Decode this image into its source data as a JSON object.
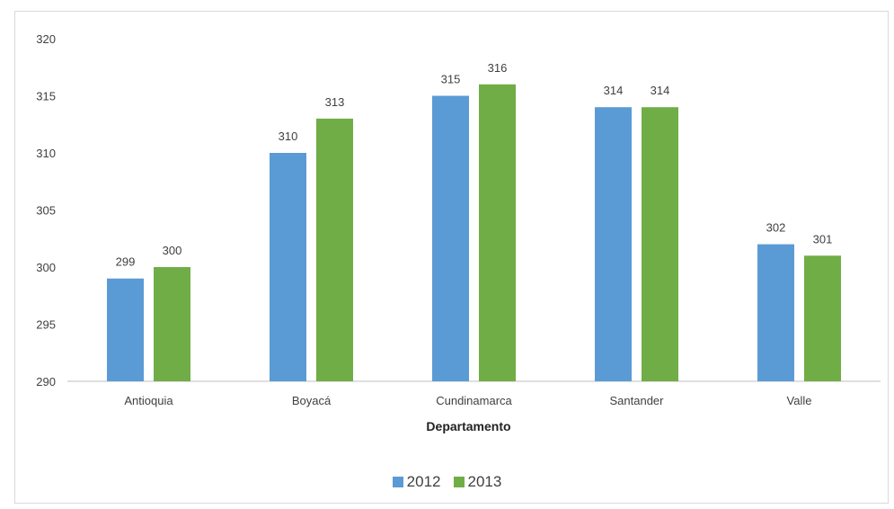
{
  "chart_data": {
    "type": "bar",
    "categories": [
      "Antioquia",
      "Boyacá",
      "Cundinamarca",
      "Santander",
      "Valle"
    ],
    "series": [
      {
        "name": "2012",
        "values": [
          299,
          310,
          315,
          314,
          302
        ],
        "color": "#5b9bd5"
      },
      {
        "name": "2013",
        "values": [
          300,
          313,
          316,
          314,
          301
        ],
        "color": "#70ad47"
      }
    ],
    "xlabel": "Departamento",
    "ylabel": "",
    "ylim": [
      290,
      320
    ],
    "yticks": [
      290,
      295,
      300,
      305,
      310,
      315,
      320
    ],
    "grid": false,
    "legend_position": "bottom",
    "data_labels": true
  }
}
